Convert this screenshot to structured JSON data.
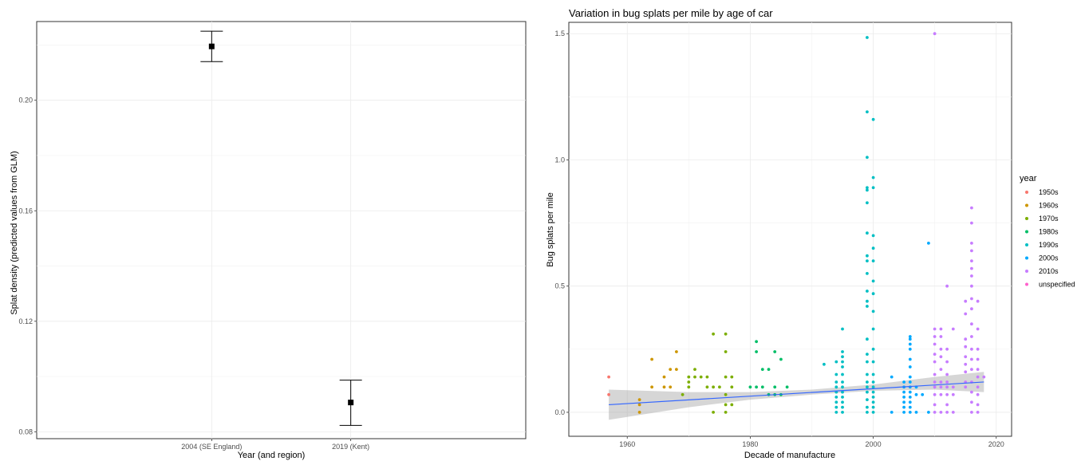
{
  "chart_data": [
    {
      "type": "scatter",
      "title": "",
      "xlabel": "Year (and region)",
      "ylabel": "Splat density (predicted values from GLM)",
      "categories": [
        "2004 (SE England)",
        "2019 (Kent)"
      ],
      "values": [
        0.2195,
        0.0906
      ],
      "ci_low": [
        0.214,
        0.0823
      ],
      "ci_high": [
        0.225,
        0.0987
      ],
      "ylim": [
        0.0775,
        0.2285
      ],
      "yticks": [
        0.08,
        0.12,
        0.16,
        0.2
      ],
      "ytick_labels": [
        "0.08",
        "0.12",
        "0.16",
        "0.20"
      ],
      "grid": true
    },
    {
      "type": "scatter",
      "title": "Variation in bug splats per mile by age of car",
      "xlabel": "Decade of manufacture",
      "ylabel": "Bug splats per mile",
      "xlim": [
        1950.5,
        2022.5
      ],
      "ylim": [
        -0.095,
        1.545
      ],
      "xticks": [
        1960,
        1980,
        2000,
        2020
      ],
      "yticks": [
        0.0,
        0.5,
        1.0,
        1.5
      ],
      "ytick_labels": [
        "0.0",
        "0.5",
        "1.0",
        "1.5"
      ],
      "grid": true,
      "legend_title": "year",
      "legend_position": "right",
      "series": [
        {
          "name": "1950s",
          "color": "#F8766D",
          "points": [
            [
              1957,
              0.14
            ],
            [
              1957,
              0.07
            ]
          ]
        },
        {
          "name": "1960s",
          "color": "#CD9600",
          "points": [
            [
              1962,
              0.05
            ],
            [
              1962,
              0.03
            ],
            [
              1962,
              0.0
            ],
            [
              1964,
              0.21
            ],
            [
              1964,
              0.1
            ],
            [
              1966,
              0.14
            ],
            [
              1966,
              0.1
            ],
            [
              1967,
              0.1
            ],
            [
              1967,
              0.17
            ],
            [
              1968,
              0.24
            ],
            [
              1968,
              0.17
            ]
          ]
        },
        {
          "name": "1970s",
          "color": "#7CAE00",
          "points": [
            [
              1969,
              0.07
            ],
            [
              1970,
              0.14
            ],
            [
              1970,
              0.12
            ],
            [
              1970,
              0.1
            ],
            [
              1971,
              0.17
            ],
            [
              1971,
              0.14
            ],
            [
              1972,
              0.14
            ],
            [
              1973,
              0.14
            ],
            [
              1973,
              0.1
            ],
            [
              1974,
              0.1
            ],
            [
              1974,
              0.31
            ],
            [
              1974,
              0.0
            ],
            [
              1975,
              0.1
            ],
            [
              1976,
              0.31
            ],
            [
              1976,
              0.24
            ],
            [
              1976,
              0.14
            ],
            [
              1976,
              0.07
            ],
            [
              1976,
              0.03
            ],
            [
              1976,
              0.0
            ],
            [
              1977,
              0.14
            ],
            [
              1977,
              0.1
            ],
            [
              1977,
              0.03
            ]
          ]
        },
        {
          "name": "1980s",
          "color": "#00BE67",
          "points": [
            [
              1980,
              0.1
            ],
            [
              1981,
              0.28
            ],
            [
              1981,
              0.24
            ],
            [
              1981,
              0.1
            ],
            [
              1982,
              0.17
            ],
            [
              1982,
              0.1
            ],
            [
              1983,
              0.17
            ],
            [
              1983,
              0.07
            ],
            [
              1984,
              0.24
            ],
            [
              1984,
              0.1
            ],
            [
              1984,
              0.07
            ],
            [
              1985,
              0.21
            ],
            [
              1985,
              0.07
            ],
            [
              1986,
              0.1
            ]
          ]
        },
        {
          "name": "1990s",
          "color": "#00BFC4",
          "points": [
            [
              1992,
              0.19
            ],
            [
              1994,
              0.2
            ],
            [
              1994,
              0.15
            ],
            [
              1994,
              0.12
            ],
            [
              1994,
              0.1
            ],
            [
              1994,
              0.08
            ],
            [
              1994,
              0.06
            ],
            [
              1994,
              0.04
            ],
            [
              1994,
              0.02
            ],
            [
              1994,
              0.0
            ],
            [
              1995,
              0.33
            ],
            [
              1995,
              0.24
            ],
            [
              1995,
              0.22
            ],
            [
              1995,
              0.2
            ],
            [
              1995,
              0.18
            ],
            [
              1995,
              0.15
            ],
            [
              1995,
              0.12
            ],
            [
              1995,
              0.1
            ],
            [
              1995,
              0.08
            ],
            [
              1995,
              0.06
            ],
            [
              1995,
              0.04
            ],
            [
              1995,
              0.02
            ],
            [
              1995,
              0.0
            ],
            [
              1999,
              1.485
            ],
            [
              1999,
              1.19
            ],
            [
              1999,
              1.01
            ],
            [
              1999,
              0.89
            ],
            [
              1999,
              0.88
            ],
            [
              1999,
              0.83
            ],
            [
              1999,
              0.71
            ],
            [
              1999,
              0.62
            ],
            [
              1999,
              0.6
            ],
            [
              1999,
              0.55
            ],
            [
              1999,
              0.48
            ],
            [
              1999,
              0.44
            ],
            [
              1999,
              0.42
            ],
            [
              1999,
              0.29
            ],
            [
              1999,
              0.23
            ],
            [
              1999,
              0.2
            ],
            [
              1999,
              0.15
            ],
            [
              1999,
              0.12
            ],
            [
              1999,
              0.1
            ],
            [
              1999,
              0.08
            ],
            [
              1999,
              0.05
            ],
            [
              1999,
              0.02
            ],
            [
              1999,
              0.0
            ],
            [
              2000,
              1.16
            ],
            [
              2000,
              0.93
            ],
            [
              2000,
              0.89
            ],
            [
              2000,
              0.7
            ],
            [
              2000,
              0.65
            ],
            [
              2000,
              0.6
            ],
            [
              2000,
              0.52
            ],
            [
              2000,
              0.47
            ],
            [
              2000,
              0.4
            ],
            [
              2000,
              0.33
            ],
            [
              2000,
              0.25
            ],
            [
              2000,
              0.2
            ],
            [
              2000,
              0.15
            ],
            [
              2000,
              0.12
            ],
            [
              2000,
              0.1
            ],
            [
              2000,
              0.08
            ],
            [
              2000,
              0.06
            ],
            [
              2000,
              0.04
            ],
            [
              2000,
              0.02
            ],
            [
              2000,
              0.0
            ]
          ]
        },
        {
          "name": "2000s",
          "color": "#00A9FF",
          "points": [
            [
              2003,
              0.14
            ],
            [
              2003,
              0.0
            ],
            [
              2005,
              0.12
            ],
            [
              2005,
              0.1
            ],
            [
              2005,
              0.08
            ],
            [
              2005,
              0.06
            ],
            [
              2005,
              0.04
            ],
            [
              2005,
              0.02
            ],
            [
              2005,
              0.0
            ],
            [
              2006,
              0.3
            ],
            [
              2006,
              0.29
            ],
            [
              2006,
              0.27
            ],
            [
              2006,
              0.25
            ],
            [
              2006,
              0.21
            ],
            [
              2006,
              0.18
            ],
            [
              2006,
              0.14
            ],
            [
              2006,
              0.12
            ],
            [
              2006,
              0.1
            ],
            [
              2006,
              0.08
            ],
            [
              2006,
              0.06
            ],
            [
              2006,
              0.04
            ],
            [
              2006,
              0.02
            ],
            [
              2006,
              0.0
            ],
            [
              2007,
              0.1
            ],
            [
              2007,
              0.07
            ],
            [
              2007,
              0.0
            ],
            [
              2008,
              0.07
            ],
            [
              2009,
              0.67
            ],
            [
              2009,
              0.0
            ]
          ]
        },
        {
          "name": "2010s",
          "color": "#C77CFF",
          "points": [
            [
              2010,
              1.5
            ],
            [
              2010,
              0.33
            ],
            [
              2010,
              0.3
            ],
            [
              2010,
              0.27
            ],
            [
              2010,
              0.23
            ],
            [
              2010,
              0.2
            ],
            [
              2010,
              0.15
            ],
            [
              2010,
              0.12
            ],
            [
              2010,
              0.1
            ],
            [
              2010,
              0.07
            ],
            [
              2010,
              0.03
            ],
            [
              2010,
              0.0
            ],
            [
              2011,
              0.33
            ],
            [
              2011,
              0.3
            ],
            [
              2011,
              0.25
            ],
            [
              2011,
              0.22
            ],
            [
              2011,
              0.17
            ],
            [
              2011,
              0.12
            ],
            [
              2011,
              0.1
            ],
            [
              2011,
              0.07
            ],
            [
              2011,
              0.0
            ],
            [
              2012,
              0.5
            ],
            [
              2012,
              0.25
            ],
            [
              2012,
              0.2
            ],
            [
              2012,
              0.15
            ],
            [
              2012,
              0.12
            ],
            [
              2012,
              0.1
            ],
            [
              2012,
              0.07
            ],
            [
              2012,
              0.03
            ],
            [
              2012,
              0.0
            ],
            [
              2013,
              0.33
            ],
            [
              2013,
              0.1
            ],
            [
              2013,
              0.07
            ],
            [
              2013,
              0.0
            ],
            [
              2015,
              0.44
            ],
            [
              2015,
              0.39
            ],
            [
              2015,
              0.29
            ],
            [
              2015,
              0.26
            ],
            [
              2015,
              0.22
            ],
            [
              2015,
              0.19
            ],
            [
              2015,
              0.16
            ],
            [
              2015,
              0.12
            ],
            [
              2015,
              0.1
            ],
            [
              2016,
              0.81
            ],
            [
              2016,
              0.75
            ],
            [
              2016,
              0.67
            ],
            [
              2016,
              0.64
            ],
            [
              2016,
              0.6
            ],
            [
              2016,
              0.57
            ],
            [
              2016,
              0.54
            ],
            [
              2016,
              0.5
            ],
            [
              2016,
              0.45
            ],
            [
              2016,
              0.41
            ],
            [
              2016,
              0.35
            ],
            [
              2016,
              0.3
            ],
            [
              2016,
              0.25
            ],
            [
              2016,
              0.21
            ],
            [
              2016,
              0.17
            ],
            [
              2016,
              0.12
            ],
            [
              2016,
              0.08
            ],
            [
              2016,
              0.04
            ],
            [
              2016,
              0.0
            ],
            [
              2017,
              0.44
            ],
            [
              2017,
              0.33
            ],
            [
              2017,
              0.25
            ],
            [
              2017,
              0.21
            ],
            [
              2017,
              0.17
            ],
            [
              2017,
              0.14
            ],
            [
              2017,
              0.1
            ],
            [
              2017,
              0.07
            ],
            [
              2017,
              0.03
            ],
            [
              2017,
              0.0
            ],
            [
              2018,
              0.14
            ]
          ]
        },
        {
          "name": "unspecified",
          "color": "#FF61CC",
          "points": []
        }
      ],
      "fit_line": {
        "color": "#3366FF",
        "x": [
          1957,
          2018
        ],
        "y": [
          0.03,
          0.12
        ]
      },
      "confidence_band": {
        "color": "#999999",
        "x": [
          1957,
          1970,
          1980,
          1990,
          2000,
          2010,
          2018
        ],
        "lower": [
          -0.03,
          0.02,
          0.05,
          0.07,
          0.085,
          0.09,
          0.08
        ],
        "upper": [
          0.09,
          0.08,
          0.08,
          0.09,
          0.11,
          0.14,
          0.16
        ]
      }
    }
  ]
}
